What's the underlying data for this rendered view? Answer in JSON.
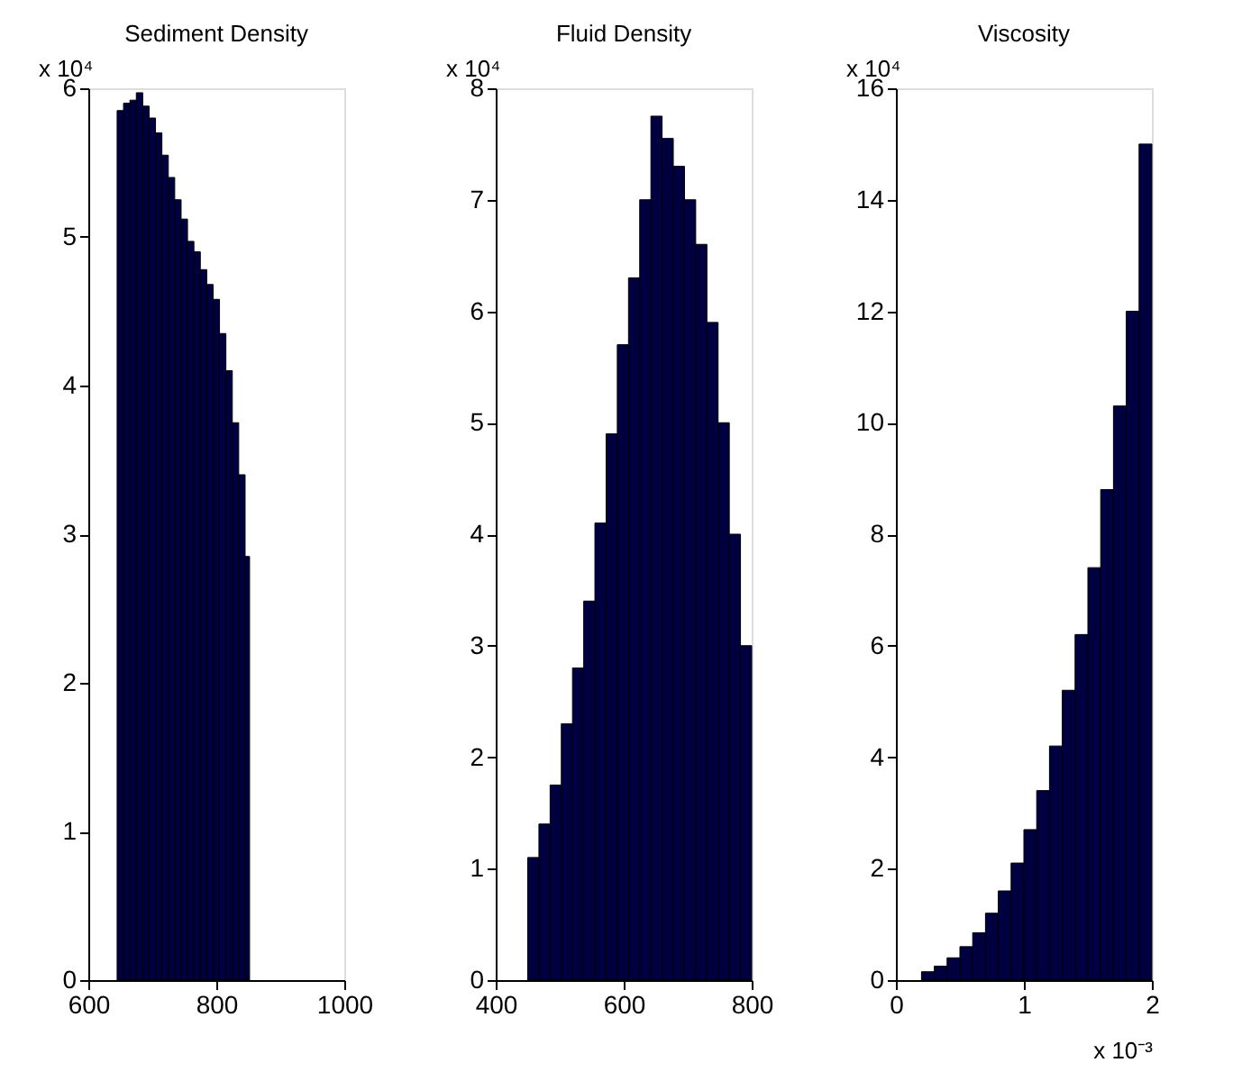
{
  "chart_data": [
    {
      "type": "histogram",
      "title": "Sediment Density",
      "ylabel": "x 10⁴",
      "color": "#000040",
      "bins": [
        645,
        655,
        665,
        675,
        685,
        695,
        705,
        715,
        725,
        735,
        745,
        755,
        765,
        775,
        785,
        795,
        805,
        815,
        825,
        835,
        845,
        852
      ],
      "values": [
        5.85,
        5.9,
        5.92,
        5.97,
        5.88,
        5.8,
        5.7,
        5.55,
        5.4,
        5.25,
        5.12,
        4.97,
        4.9,
        4.78,
        4.68,
        4.58,
        4.35,
        4.1,
        3.75,
        3.4,
        2.85
      ],
      "xlim": [
        600,
        1000
      ],
      "xticks": [
        600,
        800,
        1000
      ],
      "ylim": [
        0,
        6
      ],
      "yticks": [
        0,
        1,
        2,
        3,
        4,
        5,
        6
      ]
    },
    {
      "type": "histogram",
      "title": "Fluid Density",
      "ylabel": "x 10⁴",
      "color": "#000040",
      "bins": [
        450,
        467.5,
        485,
        502.5,
        520,
        537.5,
        555,
        572.5,
        590,
        607.5,
        625,
        642.5,
        660,
        677.5,
        695,
        712.5,
        730,
        747.5,
        765,
        782.5,
        800
      ],
      "values": [
        1.1,
        1.4,
        1.75,
        2.3,
        2.8,
        3.4,
        4.1,
        4.9,
        5.7,
        6.3,
        7.0,
        7.75,
        7.55,
        7.3,
        7.0,
        6.6,
        5.9,
        5.0,
        4.0,
        3.0
      ],
      "xlim": [
        400,
        800
      ],
      "xticks": [
        400,
        600,
        800
      ],
      "ylim": [
        0,
        8
      ],
      "yticks": [
        0,
        1,
        2,
        3,
        4,
        5,
        6,
        7,
        8
      ]
    },
    {
      "type": "histogram",
      "title": "Viscosity",
      "ylabel": "x 10⁴",
      "xlabel": "x 10⁻³",
      "color": "#000040",
      "bins": [
        0.2,
        0.3,
        0.4,
        0.5,
        0.6,
        0.7,
        0.8,
        0.9,
        1.0,
        1.1,
        1.2,
        1.3,
        1.4,
        1.5,
        1.6,
        1.7,
        1.8,
        1.9,
        2.0
      ],
      "values": [
        0.15,
        0.25,
        0.4,
        0.6,
        0.85,
        1.2,
        1.6,
        2.1,
        2.7,
        3.4,
        4.2,
        5.2,
        6.2,
        7.4,
        8.8,
        10.3,
        12.0,
        15.0
      ],
      "xlim": [
        0,
        2
      ],
      "xticks": [
        0,
        1,
        2
      ],
      "ylim": [
        0,
        16
      ],
      "yticks": [
        0,
        2,
        4,
        6,
        8,
        10,
        12,
        14,
        16
      ]
    }
  ]
}
